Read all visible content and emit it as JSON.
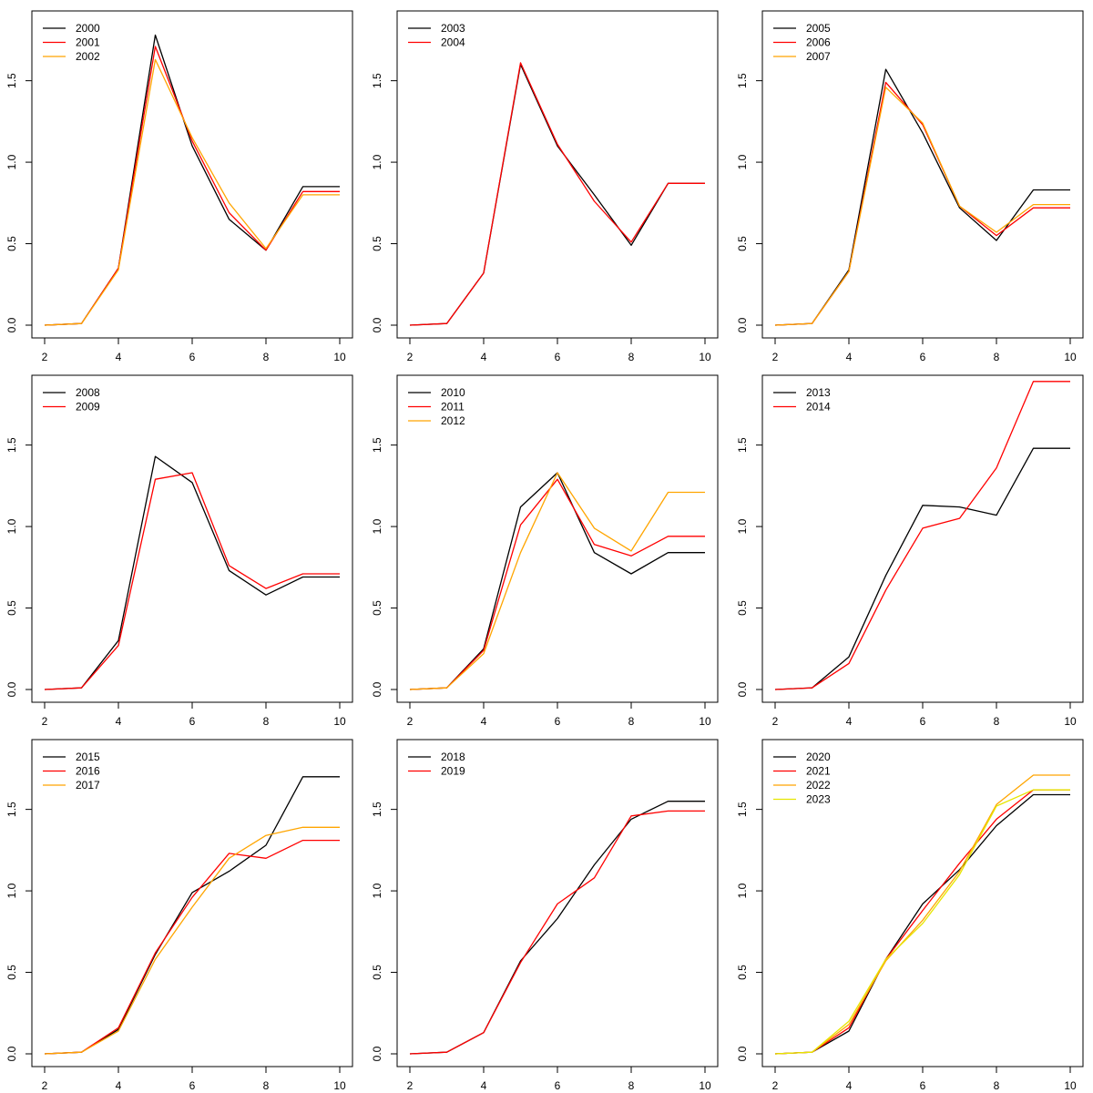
{
  "colors": {
    "black": "#000000",
    "red": "#ff0000",
    "orange": "#ffa500",
    "yellow": "#e6e600"
  },
  "chart_data": [
    {
      "type": "line",
      "title": "",
      "xlabel": "",
      "ylabel": "",
      "xlim": [
        2,
        10
      ],
      "ylim": [
        0,
        1.85
      ],
      "xticks": [
        2,
        4,
        6,
        8,
        10
      ],
      "yticks": [
        0.0,
        0.5,
        1.0,
        1.5
      ],
      "grid": false,
      "legend": "top-left",
      "x": [
        2,
        3,
        4,
        5,
        6,
        7,
        8,
        9,
        10
      ],
      "series": [
        {
          "name": "2000",
          "color": "#000000",
          "values": [
            0.0,
            0.01,
            0.35,
            1.78,
            1.1,
            0.65,
            0.46,
            0.85,
            0.85
          ]
        },
        {
          "name": "2001",
          "color": "#ff0000",
          "values": [
            0.0,
            0.01,
            0.35,
            1.71,
            1.13,
            0.69,
            0.46,
            0.82,
            0.82
          ]
        },
        {
          "name": "2002",
          "color": "#ffa500",
          "values": [
            0.0,
            0.01,
            0.34,
            1.63,
            1.15,
            0.75,
            0.47,
            0.8,
            0.8
          ]
        }
      ]
    },
    {
      "type": "line",
      "title": "",
      "xlabel": "",
      "ylabel": "",
      "xlim": [
        2,
        10
      ],
      "ylim": [
        0,
        1.85
      ],
      "xticks": [
        2,
        4,
        6,
        8,
        10
      ],
      "yticks": [
        0.0,
        0.5,
        1.0,
        1.5
      ],
      "grid": false,
      "legend": "top-left",
      "x": [
        2,
        3,
        4,
        5,
        6,
        7,
        8,
        9,
        10
      ],
      "series": [
        {
          "name": "2003",
          "color": "#000000",
          "values": [
            0.0,
            0.01,
            0.32,
            1.6,
            1.1,
            0.8,
            0.49,
            0.87,
            0.87
          ]
        },
        {
          "name": "2004",
          "color": "#ff0000",
          "values": [
            0.0,
            0.01,
            0.32,
            1.61,
            1.11,
            0.76,
            0.51,
            0.87,
            0.87
          ]
        }
      ]
    },
    {
      "type": "line",
      "title": "",
      "xlabel": "",
      "ylabel": "",
      "xlim": [
        2,
        10
      ],
      "ylim": [
        0,
        1.85
      ],
      "xticks": [
        2,
        4,
        6,
        8,
        10
      ],
      "yticks": [
        0.0,
        0.5,
        1.0,
        1.5
      ],
      "grid": false,
      "legend": "top-left",
      "x": [
        2,
        3,
        4,
        5,
        6,
        7,
        8,
        9,
        10
      ],
      "series": [
        {
          "name": "2005",
          "color": "#000000",
          "values": [
            0.0,
            0.01,
            0.34,
            1.57,
            1.18,
            0.72,
            0.52,
            0.83,
            0.83
          ]
        },
        {
          "name": "2006",
          "color": "#ff0000",
          "values": [
            0.0,
            0.01,
            0.33,
            1.49,
            1.23,
            0.73,
            0.55,
            0.72,
            0.72
          ]
        },
        {
          "name": "2007",
          "color": "#ffa500",
          "values": [
            0.0,
            0.01,
            0.33,
            1.46,
            1.24,
            0.73,
            0.57,
            0.74,
            0.74
          ]
        }
      ]
    },
    {
      "type": "line",
      "title": "",
      "xlabel": "",
      "ylabel": "",
      "xlim": [
        2,
        10
      ],
      "ylim": [
        0,
        1.85
      ],
      "xticks": [
        2,
        4,
        6,
        8,
        10
      ],
      "yticks": [
        0.0,
        0.5,
        1.0,
        1.5
      ],
      "grid": false,
      "legend": "top-left",
      "x": [
        2,
        3,
        4,
        5,
        6,
        7,
        8,
        9,
        10
      ],
      "series": [
        {
          "name": "2008",
          "color": "#000000",
          "values": [
            0.0,
            0.01,
            0.3,
            1.43,
            1.27,
            0.73,
            0.58,
            0.69,
            0.69
          ]
        },
        {
          "name": "2009",
          "color": "#ff0000",
          "values": [
            0.0,
            0.01,
            0.27,
            1.29,
            1.33,
            0.76,
            0.62,
            0.71,
            0.71
          ]
        }
      ]
    },
    {
      "type": "line",
      "title": "",
      "xlabel": "",
      "ylabel": "",
      "xlim": [
        2,
        10
      ],
      "ylim": [
        0,
        1.85
      ],
      "xticks": [
        2,
        4,
        6,
        8,
        10
      ],
      "yticks": [
        0.0,
        0.5,
        1.0,
        1.5
      ],
      "grid": false,
      "legend": "top-left",
      "x": [
        2,
        3,
        4,
        5,
        6,
        7,
        8,
        9,
        10
      ],
      "series": [
        {
          "name": "2010",
          "color": "#000000",
          "values": [
            0.0,
            0.01,
            0.25,
            1.12,
            1.33,
            0.84,
            0.71,
            0.84,
            0.84
          ]
        },
        {
          "name": "2011",
          "color": "#ff0000",
          "values": [
            0.0,
            0.01,
            0.24,
            1.01,
            1.29,
            0.89,
            0.82,
            0.94,
            0.94
          ]
        },
        {
          "name": "2012",
          "color": "#ffa500",
          "values": [
            0.0,
            0.01,
            0.22,
            0.84,
            1.33,
            0.99,
            0.85,
            1.21,
            1.21
          ]
        }
      ]
    },
    {
      "type": "line",
      "title": "",
      "xlabel": "",
      "ylabel": "",
      "xlim": [
        2,
        10
      ],
      "ylim": [
        0,
        1.85
      ],
      "xticks": [
        2,
        4,
        6,
        8,
        10
      ],
      "yticks": [
        0.0,
        0.5,
        1.0,
        1.5
      ],
      "grid": false,
      "legend": "top-left",
      "x": [
        2,
        3,
        4,
        5,
        6,
        7,
        8,
        9,
        10
      ],
      "series": [
        {
          "name": "2013",
          "color": "#000000",
          "values": [
            0.0,
            0.01,
            0.2,
            0.7,
            1.13,
            1.12,
            1.07,
            1.48,
            1.48
          ]
        },
        {
          "name": "2014",
          "color": "#ff0000",
          "values": [
            0.0,
            0.01,
            0.16,
            0.61,
            0.99,
            1.05,
            1.36,
            1.89,
            1.89
          ]
        }
      ]
    },
    {
      "type": "line",
      "title": "",
      "xlabel": "",
      "ylabel": "",
      "xlim": [
        2,
        10
      ],
      "ylim": [
        0,
        1.85
      ],
      "xticks": [
        2,
        4,
        6,
        8,
        10
      ],
      "yticks": [
        0.0,
        0.5,
        1.0,
        1.5
      ],
      "grid": false,
      "legend": "top-left",
      "x": [
        2,
        3,
        4,
        5,
        6,
        7,
        8,
        9,
        10
      ],
      "series": [
        {
          "name": "2015",
          "color": "#000000",
          "values": [
            0.0,
            0.01,
            0.15,
            0.61,
            0.99,
            1.12,
            1.28,
            1.7,
            1.7
          ]
        },
        {
          "name": "2016",
          "color": "#ff0000",
          "values": [
            0.0,
            0.01,
            0.16,
            0.62,
            0.96,
            1.23,
            1.2,
            1.31,
            1.31
          ]
        },
        {
          "name": "2017",
          "color": "#ffa500",
          "values": [
            0.0,
            0.01,
            0.14,
            0.58,
            0.9,
            1.2,
            1.34,
            1.39,
            1.39
          ]
        }
      ]
    },
    {
      "type": "line",
      "title": "",
      "xlabel": "",
      "ylabel": "",
      "xlim": [
        2,
        10
      ],
      "ylim": [
        0,
        1.85
      ],
      "xticks": [
        2,
        4,
        6,
        8,
        10
      ],
      "yticks": [
        0.0,
        0.5,
        1.0,
        1.5
      ],
      "grid": false,
      "legend": "top-left",
      "x": [
        2,
        3,
        4,
        5,
        6,
        7,
        8,
        9,
        10
      ],
      "series": [
        {
          "name": "2018",
          "color": "#000000",
          "values": [
            0.0,
            0.01,
            0.13,
            0.57,
            0.83,
            1.16,
            1.44,
            1.55,
            1.55
          ]
        },
        {
          "name": "2019",
          "color": "#ff0000",
          "values": [
            0.0,
            0.01,
            0.13,
            0.56,
            0.92,
            1.08,
            1.46,
            1.49,
            1.49
          ]
        }
      ]
    },
    {
      "type": "line",
      "title": "",
      "xlabel": "",
      "ylabel": "",
      "xlim": [
        2,
        10
      ],
      "ylim": [
        0,
        1.85
      ],
      "xticks": [
        2,
        4,
        6,
        8,
        10
      ],
      "yticks": [
        0.0,
        0.5,
        1.0,
        1.5
      ],
      "grid": false,
      "legend": "top-left",
      "x": [
        2,
        3,
        4,
        5,
        6,
        7,
        8,
        9,
        10
      ],
      "series": [
        {
          "name": "2020",
          "color": "#000000",
          "values": [
            0.0,
            0.01,
            0.14,
            0.58,
            0.92,
            1.13,
            1.4,
            1.59,
            1.59
          ]
        },
        {
          "name": "2021",
          "color": "#ff0000",
          "values": [
            0.0,
            0.01,
            0.16,
            0.58,
            0.88,
            1.17,
            1.44,
            1.62,
            1.62
          ]
        },
        {
          "name": "2022",
          "color": "#ffa500",
          "values": [
            0.0,
            0.01,
            0.18,
            0.57,
            0.82,
            1.12,
            1.53,
            1.71,
            1.71
          ]
        },
        {
          "name": "2023",
          "color": "#e6e600",
          "values": [
            0.0,
            0.01,
            0.2,
            0.58,
            0.8,
            1.1,
            1.52,
            1.62,
            1.62
          ]
        }
      ]
    }
  ]
}
